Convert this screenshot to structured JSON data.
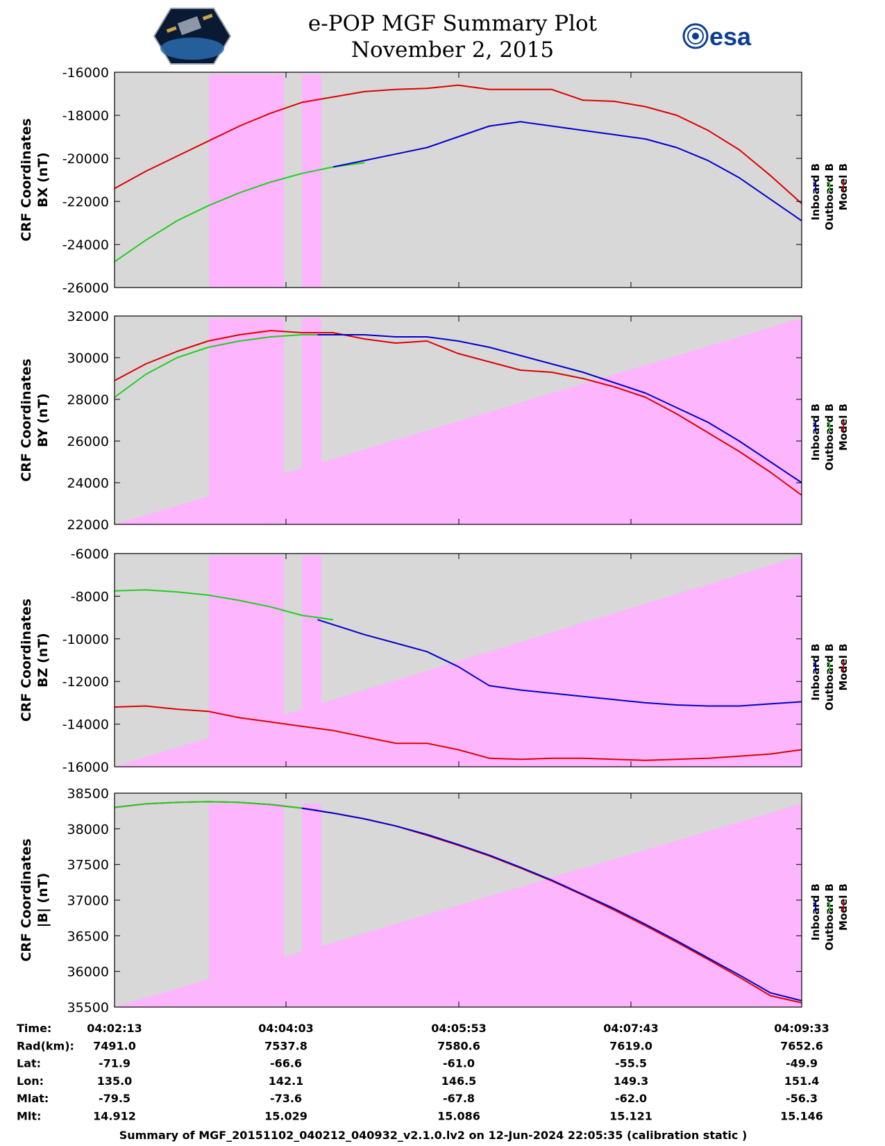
{
  "header": {
    "title_line1": "e-POP MGF Summary Plot",
    "title_line2": "November 2, 2015",
    "esa_logo_text": "esa",
    "mission_logo": "cassiope-mission-patch"
  },
  "colors": {
    "inboard": "#0000cc",
    "outboard": "#22cc22",
    "model": "#dd0000",
    "background_gray": "#d8d8d8",
    "background_magenta": "#fdb5fd"
  },
  "legend": [
    "Inboard B",
    "Outboard B",
    "Model B"
  ],
  "chart_data": [
    {
      "type": "line",
      "ylabel_line1": "CRF Coordinates",
      "ylabel_line2": "BX (nT)",
      "ylim": [
        -26000,
        -16000
      ],
      "yticks": [
        -26000,
        -24000,
        -22000,
        -20000,
        -18000,
        -16000
      ],
      "xlim": [
        0,
        440
      ],
      "shading": "blocks",
      "series": [
        {
          "name": "Model B",
          "color": "#dd0000",
          "x": [
            0,
            20,
            40,
            60,
            80,
            100,
            120,
            140,
            160,
            180,
            200,
            220,
            240,
            260,
            280,
            300,
            320,
            340,
            360,
            380,
            400,
            420,
            440
          ],
          "values": [
            -21400,
            -20600,
            -19900,
            -19200,
            -18500,
            -17900,
            -17400,
            -17150,
            -16900,
            -16800,
            -16750,
            -16600,
            -16800,
            -16800,
            -16800,
            -17300,
            -17350,
            -17600,
            -18000,
            -18700,
            -19600,
            -20800,
            -22100
          ]
        },
        {
          "name": "Outboard B",
          "color": "#22cc22",
          "x": [
            0,
            20,
            40,
            60,
            80,
            100,
            120,
            140,
            160
          ],
          "values": [
            -24800,
            -23800,
            -22900,
            -22200,
            -21600,
            -21100,
            -20700,
            -20400,
            -20200
          ]
        },
        {
          "name": "Inboard B",
          "color": "#0000cc",
          "x": [
            140,
            160,
            180,
            200,
            220,
            240,
            260,
            280,
            300,
            320,
            340,
            360,
            380,
            400,
            420,
            440
          ],
          "values": [
            -20400,
            -20100,
            -19800,
            -19500,
            -19000,
            -18500,
            -18300,
            -18500,
            -18700,
            -18900,
            -19100,
            -19500,
            -20100,
            -20900,
            -21900,
            -22900
          ]
        }
      ]
    },
    {
      "type": "line",
      "ylabel_line1": "CRF Coordinates",
      "ylabel_line2": "BY (nT)",
      "ylim": [
        22000,
        32000
      ],
      "yticks": [
        22000,
        24000,
        26000,
        28000,
        30000,
        32000
      ],
      "xlim": [
        0,
        440
      ],
      "shading": "wedge",
      "series": [
        {
          "name": "Model B",
          "color": "#dd0000",
          "x": [
            0,
            20,
            40,
            60,
            80,
            100,
            120,
            140,
            160,
            180,
            200,
            220,
            240,
            260,
            280,
            300,
            320,
            340,
            360,
            380,
            400,
            420,
            440
          ],
          "values": [
            28900,
            29700,
            30300,
            30800,
            31100,
            31300,
            31200,
            31200,
            30900,
            30700,
            30800,
            30200,
            29800,
            29400,
            29300,
            29000,
            28600,
            28100,
            27300,
            26400,
            25500,
            24500,
            23400
          ]
        },
        {
          "name": "Outboard B",
          "color": "#22cc22",
          "x": [
            0,
            20,
            40,
            60,
            80,
            100,
            120,
            140
          ],
          "values": [
            28100,
            29200,
            30000,
            30500,
            30800,
            31000,
            31100,
            31100
          ]
        },
        {
          "name": "Inboard B",
          "color": "#0000cc",
          "x": [
            130,
            160,
            180,
            200,
            220,
            240,
            260,
            280,
            300,
            320,
            340,
            360,
            380,
            400,
            420,
            440
          ],
          "values": [
            31100,
            31100,
            31000,
            31000,
            30800,
            30500,
            30100,
            29700,
            29300,
            28800,
            28300,
            27600,
            26900,
            26000,
            25000,
            24000
          ]
        }
      ]
    },
    {
      "type": "line",
      "ylabel_line1": "CRF Coordinates",
      "ylabel_line2": "BZ (nT)",
      "ylim": [
        -16000,
        -6000
      ],
      "yticks": [
        -16000,
        -14000,
        -12000,
        -10000,
        -8000,
        -6000
      ],
      "xlim": [
        0,
        440
      ],
      "shading": "wedge",
      "series": [
        {
          "name": "Model B",
          "color": "#dd0000",
          "x": [
            0,
            20,
            40,
            60,
            80,
            100,
            120,
            140,
            160,
            180,
            200,
            220,
            240,
            260,
            280,
            300,
            320,
            340,
            360,
            380,
            400,
            420,
            440
          ],
          "values": [
            -13200,
            -13150,
            -13300,
            -13400,
            -13700,
            -13900,
            -14100,
            -14300,
            -14600,
            -14900,
            -14900,
            -15200,
            -15600,
            -15650,
            -15600,
            -15600,
            -15650,
            -15700,
            -15650,
            -15600,
            -15500,
            -15400,
            -15200
          ]
        },
        {
          "name": "Outboard B",
          "color": "#22cc22",
          "x": [
            0,
            20,
            40,
            60,
            80,
            100,
            120,
            140
          ],
          "values": [
            -7750,
            -7700,
            -7800,
            -7950,
            -8200,
            -8500,
            -8900,
            -9100
          ]
        },
        {
          "name": "Inboard B",
          "color": "#0000cc",
          "x": [
            130,
            160,
            180,
            200,
            220,
            240,
            260,
            280,
            300,
            320,
            340,
            360,
            380,
            400,
            420,
            440
          ],
          "values": [
            -9100,
            -9800,
            -10200,
            -10600,
            -11300,
            -12200,
            -12400,
            -12550,
            -12700,
            -12850,
            -13000,
            -13100,
            -13150,
            -13150,
            -13050,
            -12950
          ]
        }
      ]
    },
    {
      "type": "line",
      "ylabel_line1": "CRF Coordinates",
      "ylabel_line2": "|B| (nT)",
      "ylim": [
        35500,
        38500
      ],
      "yticks": [
        35500,
        36000,
        36500,
        37000,
        37500,
        38000,
        38500
      ],
      "xlim": [
        0,
        440
      ],
      "shading": "wedge_short",
      "series": [
        {
          "name": "Model B",
          "color": "#dd0000",
          "x": [
            0,
            20,
            40,
            60,
            80,
            100,
            120,
            140,
            160,
            180,
            200,
            220,
            240,
            260,
            280,
            300,
            320,
            340,
            360,
            380,
            400,
            420,
            440
          ],
          "values": [
            38300,
            38350,
            38370,
            38380,
            38370,
            38340,
            38290,
            38220,
            38140,
            38040,
            37910,
            37770,
            37620,
            37450,
            37270,
            37070,
            36860,
            36640,
            36410,
            36170,
            35920,
            35660,
            35560
          ]
        },
        {
          "name": "Outboard B",
          "color": "#22cc22",
          "x": [
            0,
            20,
            40,
            60,
            80,
            100,
            120,
            130
          ],
          "values": [
            38300,
            38350,
            38370,
            38380,
            38370,
            38340,
            38290,
            38260
          ]
        },
        {
          "name": "Inboard B",
          "color": "#0000cc",
          "x": [
            120,
            140,
            160,
            180,
            200,
            220,
            240,
            260,
            280,
            300,
            320,
            340,
            360,
            380,
            400,
            420,
            440
          ],
          "values": [
            38290,
            38220,
            38140,
            38040,
            37920,
            37780,
            37630,
            37460,
            37280,
            37080,
            36880,
            36660,
            36430,
            36190,
            35950,
            35700,
            35590
          ]
        }
      ]
    }
  ],
  "ephemeris": {
    "labels": [
      "Time:",
      "Rad(km):",
      "Lat:",
      "Lon:",
      "Mlat:",
      "Mlt:"
    ],
    "columns": [
      {
        "values": [
          "04:02:13",
          "7491.0",
          "-71.9",
          "135.0",
          "-79.5",
          "14.912"
        ]
      },
      {
        "values": [
          "04:04:03",
          "7537.8",
          "-66.6",
          "142.1",
          "-73.6",
          "15.029"
        ]
      },
      {
        "values": [
          "04:05:53",
          "7580.6",
          "-61.0",
          "146.5",
          "-67.8",
          "15.086"
        ]
      },
      {
        "values": [
          "04:07:43",
          "7619.0",
          "-55.5",
          "149.3",
          "-62.0",
          "15.121"
        ]
      },
      {
        "values": [
          "04:09:33",
          "7652.6",
          "-49.9",
          "151.4",
          "-56.3",
          "15.146"
        ]
      }
    ]
  },
  "footer": "Summary of MGF_20151102_040212_040932_v2.1.0.lv2 on 12-Jun-2024 22:05:35 (calibration static )"
}
